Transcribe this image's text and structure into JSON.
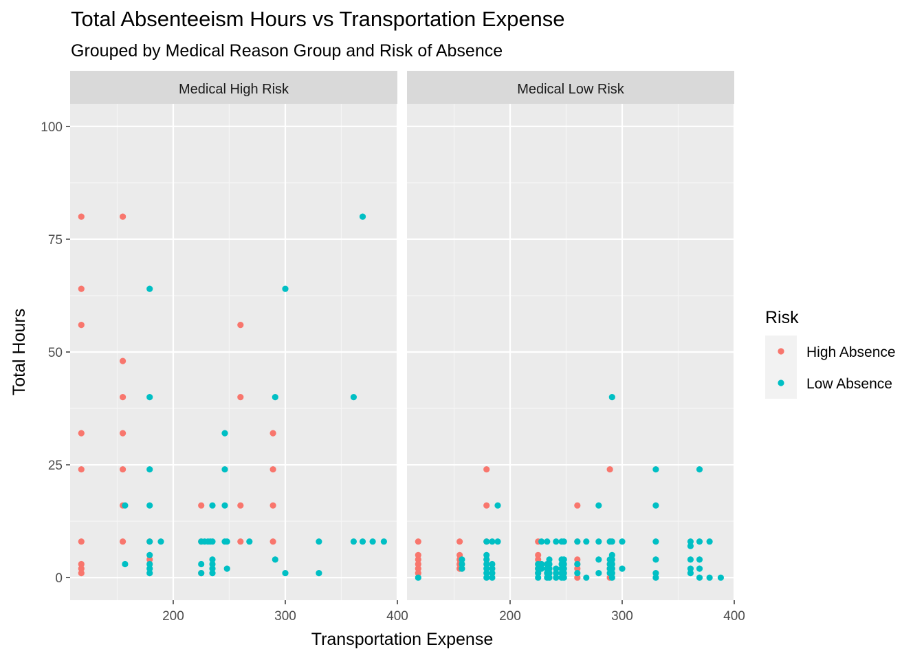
{
  "chart_data": {
    "type": "scatter",
    "title": "Total Absenteeism Hours vs Transportation Expense",
    "subtitle": "Grouped by Medical Reason Group and Risk of Absence",
    "xlabel": "Transportation Expense",
    "ylabel": "Total Hours",
    "xlim": [
      108,
      400
    ],
    "ylim": [
      -5,
      105
    ],
    "x_ticks": [
      200,
      300,
      400
    ],
    "y_ticks": [
      0,
      25,
      50,
      75,
      100
    ],
    "grid": true,
    "legend": {
      "title": "Risk",
      "placement": "right",
      "entries": [
        {
          "label": "High Absence",
          "color": "#F8766D"
        },
        {
          "label": "Low Absence",
          "color": "#00BFC4"
        }
      ]
    },
    "facets": [
      {
        "label": "Medical High Risk",
        "series": [
          {
            "name": "High Absence",
            "color": "#F8766D",
            "points": [
              [
                118,
                80
              ],
              [
                118,
                64
              ],
              [
                118,
                56
              ],
              [
                118,
                32
              ],
              [
                118,
                24
              ],
              [
                118,
                8
              ],
              [
                118,
                3
              ],
              [
                118,
                2
              ],
              [
                118,
                1
              ],
              [
                155,
                80
              ],
              [
                155,
                48
              ],
              [
                155,
                40
              ],
              [
                155,
                32
              ],
              [
                155,
                24
              ],
              [
                155,
                16
              ],
              [
                155,
                8
              ],
              [
                179,
                8
              ],
              [
                179,
                4
              ],
              [
                225,
                16
              ],
              [
                225,
                8
              ],
              [
                225,
                1
              ],
              [
                260,
                56
              ],
              [
                260,
                40
              ],
              [
                260,
                16
              ],
              [
                260,
                8
              ],
              [
                289,
                32
              ],
              [
                289,
                24
              ],
              [
                289,
                16
              ],
              [
                289,
                8
              ]
            ]
          },
          {
            "name": "Low Absence",
            "color": "#00BFC4",
            "points": [
              [
                157,
                16
              ],
              [
                157,
                3
              ],
              [
                179,
                64
              ],
              [
                179,
                40
              ],
              [
                179,
                24
              ],
              [
                179,
                16
              ],
              [
                179,
                8
              ],
              [
                179,
                5
              ],
              [
                179,
                3
              ],
              [
                179,
                2
              ],
              [
                179,
                1
              ],
              [
                189,
                8
              ],
              [
                225,
                8
              ],
              [
                225,
                3
              ],
              [
                225,
                1
              ],
              [
                228,
                8
              ],
              [
                231,
                8
              ],
              [
                233,
                8
              ],
              [
                235,
                16
              ],
              [
                235,
                8
              ],
              [
                235,
                4
              ],
              [
                235,
                3
              ],
              [
                235,
                2
              ],
              [
                235,
                1
              ],
              [
                246,
                32
              ],
              [
                246,
                24
              ],
              [
                246,
                16
              ],
              [
                246,
                8
              ],
              [
                248,
                8
              ],
              [
                248,
                2
              ],
              [
                268,
                8
              ],
              [
                291,
                40
              ],
              [
                291,
                4
              ],
              [
                300,
                64
              ],
              [
                300,
                1
              ],
              [
                330,
                8
              ],
              [
                330,
                1
              ],
              [
                361,
                40
              ],
              [
                361,
                8
              ],
              [
                369,
                80
              ],
              [
                369,
                8
              ],
              [
                378,
                8
              ],
              [
                388,
                8
              ]
            ]
          }
        ]
      },
      {
        "label": "Medical Low Risk",
        "series": [
          {
            "name": "High Absence",
            "color": "#F8766D",
            "points": [
              [
                118,
                8
              ],
              [
                118,
                5
              ],
              [
                118,
                4
              ],
              [
                118,
                3
              ],
              [
                118,
                2
              ],
              [
                118,
                1
              ],
              [
                155,
                8
              ],
              [
                155,
                5
              ],
              [
                155,
                4
              ],
              [
                155,
                3
              ],
              [
                155,
                2
              ],
              [
                179,
                24
              ],
              [
                179,
                16
              ],
              [
                179,
                8
              ],
              [
                179,
                4
              ],
              [
                225,
                8
              ],
              [
                225,
                5
              ],
              [
                225,
                4
              ],
              [
                225,
                3
              ],
              [
                225,
                2
              ],
              [
                225,
                1
              ],
              [
                260,
                16
              ],
              [
                260,
                8
              ],
              [
                260,
                4
              ],
              [
                260,
                3
              ],
              [
                260,
                2
              ],
              [
                260,
                0
              ],
              [
                289,
                24
              ],
              [
                289,
                8
              ],
              [
                289,
                3
              ],
              [
                289,
                2
              ],
              [
                289,
                0
              ]
            ]
          },
          {
            "name": "Low Absence",
            "color": "#00BFC4",
            "points": [
              [
                118,
                0
              ],
              [
                157,
                4
              ],
              [
                157,
                3
              ],
              [
                157,
                2
              ],
              [
                179,
                8
              ],
              [
                179,
                5
              ],
              [
                179,
                4
              ],
              [
                179,
                3
              ],
              [
                179,
                2
              ],
              [
                179,
                1
              ],
              [
                179,
                0
              ],
              [
                184,
                8
              ],
              [
                184,
                3
              ],
              [
                184,
                2
              ],
              [
                184,
                1
              ],
              [
                184,
                0
              ],
              [
                189,
                16
              ],
              [
                189,
                8
              ],
              [
                225,
                3
              ],
              [
                225,
                2
              ],
              [
                225,
                1
              ],
              [
                225,
                0
              ],
              [
                228,
                8
              ],
              [
                228,
                3
              ],
              [
                228,
                2
              ],
              [
                233,
                8
              ],
              [
                233,
                3
              ],
              [
                233,
                2
              ],
              [
                233,
                1
              ],
              [
                233,
                0
              ],
              [
                235,
                4
              ],
              [
                235,
                3
              ],
              [
                235,
                2
              ],
              [
                235,
                1
              ],
              [
                235,
                0
              ],
              [
                241,
                8
              ],
              [
                241,
                2
              ],
              [
                241,
                1
              ],
              [
                241,
                0
              ],
              [
                246,
                8
              ],
              [
                246,
                4
              ],
              [
                246,
                3
              ],
              [
                246,
                2
              ],
              [
                246,
                1
              ],
              [
                246,
                0
              ],
              [
                248,
                8
              ],
              [
                248,
                4
              ],
              [
                248,
                3
              ],
              [
                248,
                2
              ],
              [
                248,
                1
              ],
              [
                248,
                0
              ],
              [
                260,
                8
              ],
              [
                260,
                3
              ],
              [
                260,
                1
              ],
              [
                268,
                8
              ],
              [
                268,
                0
              ],
              [
                279,
                16
              ],
              [
                279,
                8
              ],
              [
                279,
                4
              ],
              [
                279,
                1
              ],
              [
                289,
                8
              ],
              [
                289,
                4
              ],
              [
                289,
                3
              ],
              [
                289,
                2
              ],
              [
                289,
                1
              ],
              [
                291,
                40
              ],
              [
                291,
                8
              ],
              [
                291,
                5
              ],
              [
                291,
                4
              ],
              [
                291,
                3
              ],
              [
                291,
                2
              ],
              [
                291,
                1
              ],
              [
                291,
                0
              ],
              [
                300,
                8
              ],
              [
                300,
                2
              ],
              [
                330,
                24
              ],
              [
                330,
                16
              ],
              [
                330,
                8
              ],
              [
                330,
                4
              ],
              [
                330,
                1
              ],
              [
                330,
                0
              ],
              [
                361,
                8
              ],
              [
                361,
                7
              ],
              [
                361,
                4
              ],
              [
                361,
                2
              ],
              [
                361,
                1
              ],
              [
                369,
                24
              ],
              [
                369,
                8
              ],
              [
                369,
                4
              ],
              [
                369,
                2
              ],
              [
                369,
                0
              ],
              [
                378,
                8
              ],
              [
                378,
                0
              ],
              [
                388,
                0
              ]
            ]
          }
        ]
      }
    ]
  }
}
